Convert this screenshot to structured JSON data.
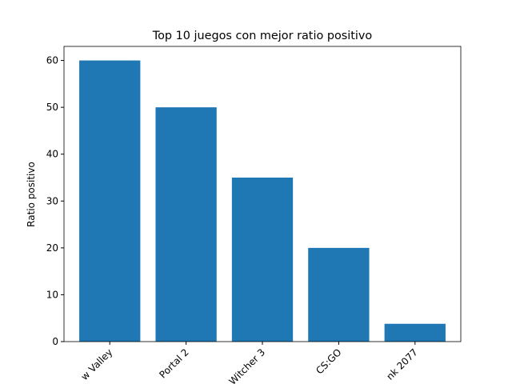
{
  "chart_data": {
    "type": "bar",
    "title": "Top 10 juegos con mejor ratio positivo",
    "ylabel": "Ratio positivo",
    "categories": [
      "w Valley",
      "Portal 2",
      "Witcher 3",
      "CS:GO",
      "nk 2077"
    ],
    "values": [
      60,
      50,
      35,
      20,
      3.8
    ],
    "color": "#1f77b4",
    "ylim": [
      0,
      63
    ],
    "yticks": [
      0,
      10,
      20,
      30,
      40,
      50,
      60
    ]
  }
}
